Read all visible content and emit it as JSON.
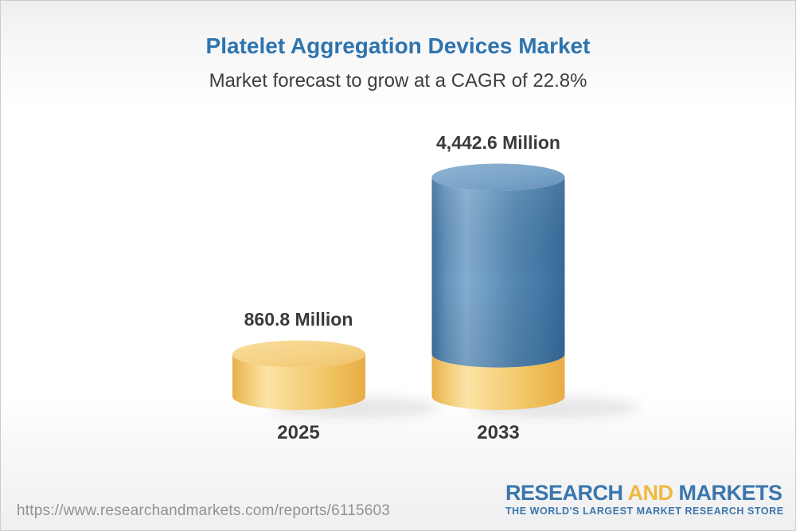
{
  "chart_data": {
    "type": "bar",
    "style": "3d-cylinder",
    "orientation": "vertical",
    "title": "Platelet Aggregation Devices Market",
    "subtitle": "Market forecast to grow at a CAGR of 22.8%",
    "cagr": "22.8%",
    "unit": "Million",
    "categories": [
      "2025",
      "2033"
    ],
    "values": [
      860.8,
      4442.6
    ],
    "value_labels": [
      "860.8 Million",
      "4,442.6 Million"
    ],
    "base_segment_note": "2033 cylinder shows the 2025 value as a yellow base segment",
    "bar_colors": [
      "#F2C566",
      "#4B7CA9"
    ],
    "legend": false,
    "grid": false,
    "axes": "none"
  },
  "footer": {
    "url": "https://www.researchandmarkets.com/reports/6115603",
    "logo": {
      "word1": "RESEARCH",
      "word2": "AND",
      "word3": "MARKETS",
      "tagline": "THE WORLD'S LARGEST MARKET RESEARCH STORE"
    }
  },
  "theme": {
    "title_color": "#2E74AE",
    "subtitle_color": "#3E3E3E",
    "label_color": "#3A3A3A",
    "url_color": "#8E9295",
    "logo_blue": "#3B76AD",
    "logo_gold": "#F0B942",
    "bar_yellow": "#F2C566",
    "bar_blue": "#4B7CA9",
    "background_top": "#EEEEEF",
    "background_bottom": "#EFEFF0",
    "border_color": "#C9CBCC"
  }
}
